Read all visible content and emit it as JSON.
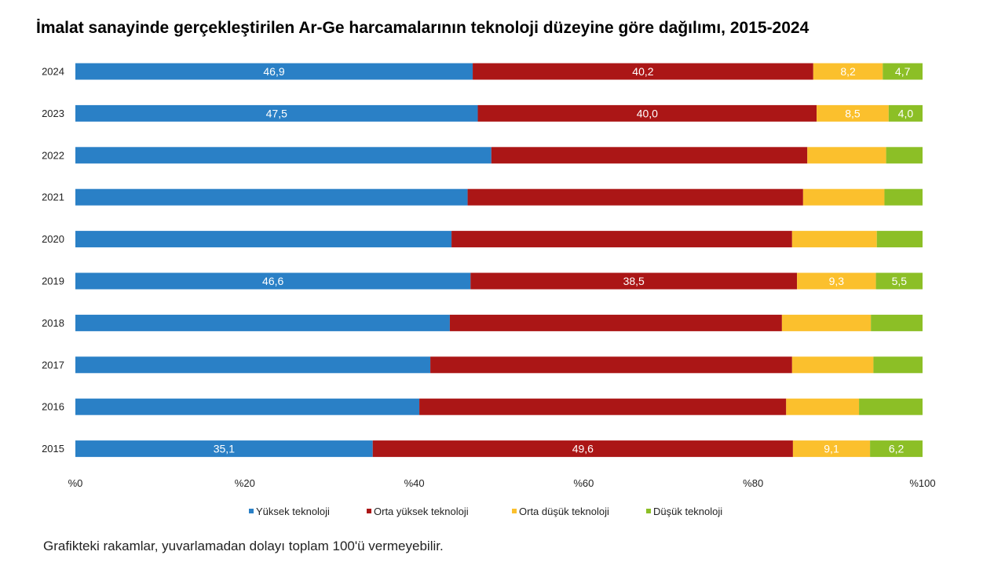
{
  "chart_data": {
    "type": "bar",
    "orientation": "horizontal",
    "stacked": true,
    "title": "İmalat sanayinde gerçekleştirilen Ar-Ge harcamalarının teknoloji düzeyine göre dağılımı, 2015-2024",
    "note": "Grafikteki rakamlar, yuvarlamadan dolayı toplam 100'ü vermeyebilir.",
    "categories": [
      "2024",
      "2023",
      "2022",
      "2021",
      "2020",
      "2019",
      "2018",
      "2017",
      "2016",
      "2015"
    ],
    "xlim": [
      0,
      100
    ],
    "x_ticks": [
      {
        "value": 0,
        "label": "%0"
      },
      {
        "value": 20,
        "label": "%20"
      },
      {
        "value": 40,
        "label": "%40"
      },
      {
        "value": 60,
        "label": "%60"
      },
      {
        "value": 80,
        "label": "%80"
      },
      {
        "value": 100,
        "label": "%100"
      }
    ],
    "grid": false,
    "legend_position": "bottom",
    "series": [
      {
        "name": "Yüksek teknoloji",
        "color": "#2a80c6",
        "values": [
          46.9,
          47.5,
          49.1,
          46.3,
          44.4,
          46.6,
          44.2,
          41.9,
          40.6,
          35.1
        ]
      },
      {
        "name": "Orta yüksek teknoloji",
        "color": "#ab1616",
        "values": [
          40.2,
          40.0,
          37.3,
          39.6,
          40.2,
          38.5,
          39.2,
          42.7,
          43.3,
          49.6
        ]
      },
      {
        "name": "Orta düşük teknoloji",
        "color": "#fbc02d",
        "values": [
          8.2,
          8.5,
          9.3,
          9.6,
          10.0,
          9.3,
          10.5,
          9.6,
          8.6,
          9.1
        ]
      },
      {
        "name": "Düşük teknoloji",
        "color": "#8cbf26",
        "values": [
          4.7,
          4.0,
          4.3,
          4.5,
          5.4,
          5.5,
          6.1,
          5.8,
          7.5,
          6.2
        ]
      }
    ],
    "data_labels": {
      "2024": [
        "46,9",
        "40,2",
        "8,2",
        "4,7"
      ],
      "2023": [
        "47,5",
        "40,0",
        "8,5",
        "4,0"
      ],
      "2019": [
        "46,6",
        "38,5",
        "9,3",
        "5,5"
      ],
      "2015": [
        "35,1",
        "49,6",
        "9,1",
        "6,2"
      ]
    }
  }
}
